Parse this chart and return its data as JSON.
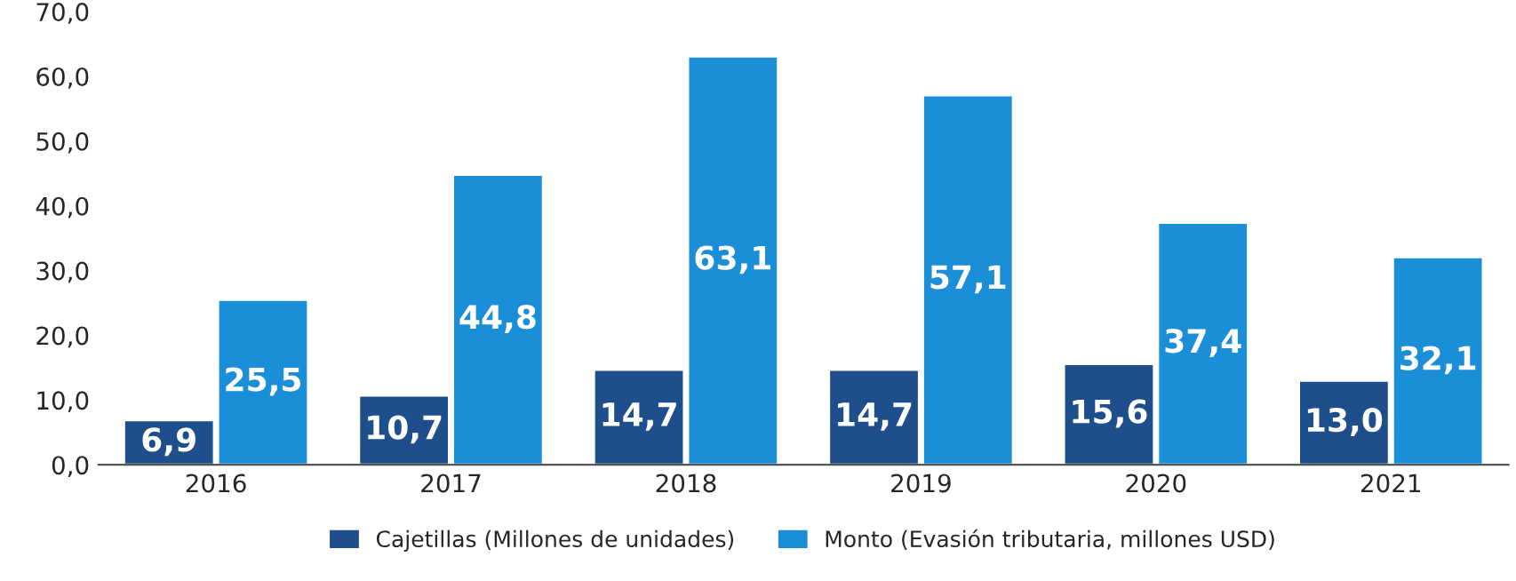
{
  "chart_data": {
    "type": "bar",
    "categories": [
      "2016",
      "2017",
      "2018",
      "2019",
      "2020",
      "2021"
    ],
    "series": [
      {
        "name": "Cajetillas (Millones de unidades)",
        "color": "#1f4e8c",
        "values": [
          6.9,
          10.7,
          14.7,
          14.7,
          15.6,
          13.0
        ],
        "value_labels": [
          "6,9",
          "10,7",
          "14,7",
          "14,7",
          "15,6",
          "13,0"
        ]
      },
      {
        "name": "Monto (Evasión tributaria, millones USD)",
        "color": "#1a8fd8",
        "values": [
          25.5,
          44.8,
          63.1,
          57.1,
          37.4,
          32.1
        ],
        "value_labels": [
          "25,5",
          "44,8",
          "63,1",
          "57,1",
          "37,4",
          "32,1"
        ]
      }
    ],
    "ylim": [
      0,
      70
    ],
    "yticks": [
      {
        "value": 0,
        "label": "0,0"
      },
      {
        "value": 10,
        "label": "10,0"
      },
      {
        "value": 20,
        "label": "20,0"
      },
      {
        "value": 30,
        "label": "30,0"
      },
      {
        "value": 40,
        "label": "40,0"
      },
      {
        "value": 50,
        "label": "50,0"
      },
      {
        "value": 60,
        "label": "60,0"
      },
      {
        "value": 70,
        "label": "70,0"
      }
    ],
    "grid": false,
    "legend": "bottom"
  }
}
